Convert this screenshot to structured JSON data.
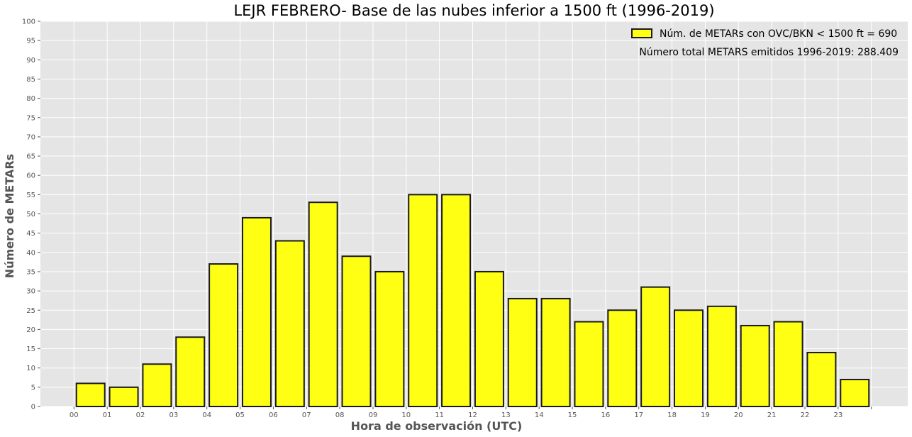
{
  "chart_data": {
    "type": "bar",
    "title": "LEJR FEBRERO- Base de las nubes inferior a 1500 ft (1996-2019)",
    "xlabel": "Hora de observación (UTC)",
    "ylabel": "Número de METARs",
    "categories": [
      "00",
      "01",
      "02",
      "03",
      "04",
      "05",
      "06",
      "07",
      "08",
      "09",
      "10",
      "11",
      "12",
      "13",
      "14",
      "15",
      "16",
      "17",
      "18",
      "19",
      "20",
      "21",
      "22",
      "23"
    ],
    "x_tick_labels": [
      "00",
      "01",
      "02",
      "03",
      "04",
      "05",
      "06",
      "07",
      "08",
      "09",
      "10",
      "11",
      "12",
      "13",
      "14",
      "15",
      "16",
      "17",
      "18",
      "19",
      "20",
      "21",
      "22",
      "23",
      ""
    ],
    "values": [
      6,
      5,
      11,
      18,
      37,
      49,
      43,
      53,
      39,
      35,
      55,
      55,
      35,
      28,
      28,
      22,
      25,
      31,
      25,
      26,
      21,
      22,
      14,
      7
    ],
    "ylim": [
      0,
      100
    ],
    "y_tick_step": 5,
    "y_ticks": [
      "0",
      "5",
      "10",
      "15",
      "20",
      "25",
      "30",
      "35",
      "40",
      "45",
      "50",
      "55",
      "60",
      "65",
      "70",
      "75",
      "80",
      "85",
      "90",
      "95",
      "100"
    ],
    "grid": true,
    "legend": {
      "position": "top-right",
      "entry": "Núm. de METARs con OVC/BKN < 1500 ft = 690",
      "note": "Número total METARS emitidos 1996-2019: 288.409"
    },
    "colors": {
      "bar_fill": "#ffff14",
      "bar_edge": "#1a1a1a",
      "plot_background": "#e5e5e5",
      "grid": "#ffffff",
      "axis_text": "#555555"
    }
  }
}
